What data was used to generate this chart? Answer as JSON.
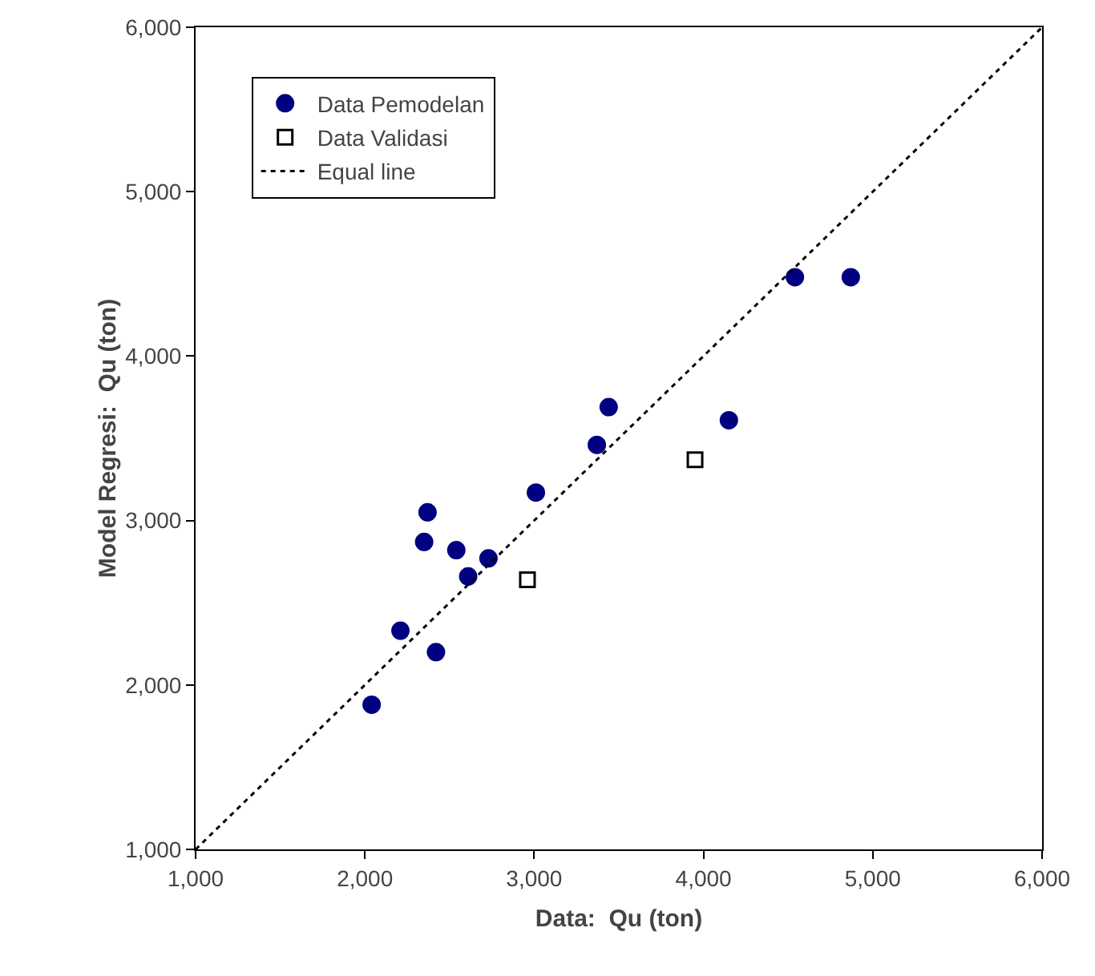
{
  "chart_data": {
    "type": "scatter",
    "xlabel": "Data:  Qu (ton)",
    "ylabel": "Model Regresi:  Qu (ton)",
    "xlim": [
      1000,
      6000
    ],
    "xticks": [
      {
        "value": 1000,
        "label": "1,000"
      },
      {
        "value": 2000,
        "label": "2,000"
      },
      {
        "value": 3000,
        "label": "3,000"
      },
      {
        "value": 4000,
        "label": "4,000"
      },
      {
        "value": 5000,
        "label": "5,000"
      },
      {
        "value": 6000,
        "label": "6,000"
      }
    ],
    "ylim": [
      1000,
      6000
    ],
    "yticks": [
      {
        "value": 1000,
        "label": "1,000"
      },
      {
        "value": 2000,
        "label": "2,000"
      },
      {
        "value": 3000,
        "label": "3,000"
      },
      {
        "value": 4000,
        "label": "4,000"
      },
      {
        "value": 5000,
        "label": "5,000"
      },
      {
        "value": 6000,
        "label": "6,000"
      }
    ],
    "grid": false,
    "legend": "top left",
    "series": [
      {
        "name": "Data Pemodelan",
        "color": "#000080",
        "marker": "circle",
        "x": [
          2040,
          2210,
          2420,
          2350,
          2370,
          2540,
          2610,
          2730,
          3010,
          3370,
          3440,
          4150,
          4540,
          4870
        ],
        "values": [
          1880,
          2330,
          2200,
          2870,
          3050,
          2820,
          2660,
          2770,
          3170,
          3460,
          3690,
          3610,
          4480,
          4480
        ]
      },
      {
        "name": "Data Validasi",
        "color": "#000000",
        "marker": "square",
        "x": [
          2960,
          3950
        ],
        "values": [
          2640,
          3370
        ]
      },
      {
        "name": "Equal line",
        "type": "line",
        "color": "#000000",
        "marker": "none",
        "line_style": "dotted",
        "x": [
          1000,
          6000
        ],
        "values": [
          1000,
          6000
        ]
      }
    ]
  }
}
